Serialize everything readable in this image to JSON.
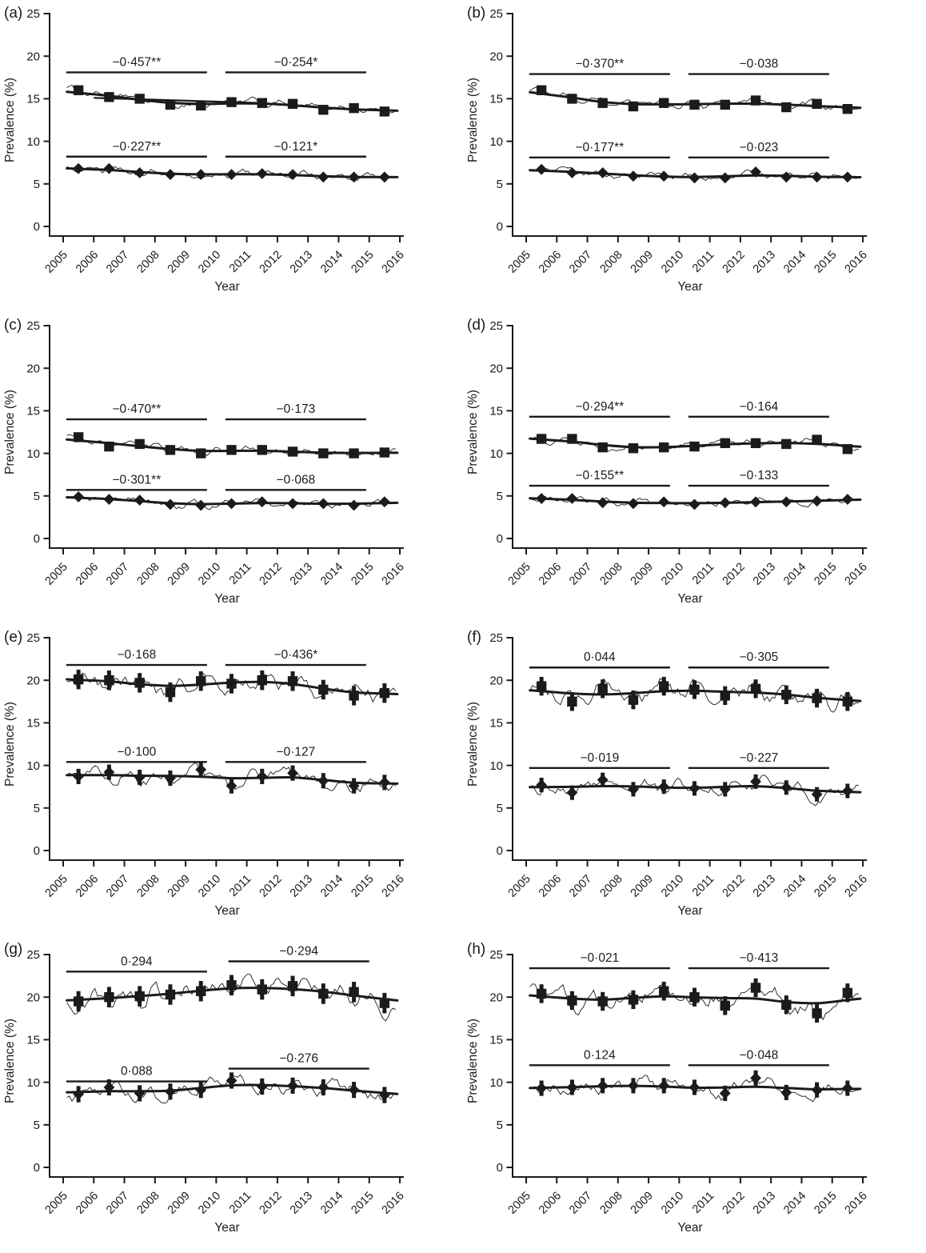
{
  "figure": {
    "ylabel": "Prevalence (%)",
    "xlabel": "Year",
    "yticks": [
      0,
      5,
      10,
      15,
      20,
      25
    ],
    "xticks": [
      2005,
      2006,
      2007,
      2008,
      2009,
      2010,
      2011,
      2012,
      2013,
      2014,
      2015,
      2016
    ],
    "ylim": [
      0,
      25
    ],
    "xlim": [
      2005,
      2016
    ],
    "grid": "off",
    "legend": "none",
    "ink_color": "#1b1b1b"
  },
  "chart_data": [
    {
      "type": "line",
      "panel": "(a)",
      "x": [
        2005.5,
        2006.5,
        2007.5,
        2008.5,
        2009.5,
        2010.5,
        2011.5,
        2012.5,
        2013.5,
        2014.5,
        2015.5
      ],
      "series": [
        {
          "name": "square-series",
          "marker": "square",
          "values": [
            16.0,
            15.2,
            15.0,
            14.3,
            14.2,
            14.6,
            14.5,
            14.4,
            13.7,
            13.9,
            13.5
          ],
          "err": 0.35
        },
        {
          "name": "diamond-series",
          "marker": "diamond",
          "values": [
            6.8,
            6.8,
            6.3,
            6.1,
            6.1,
            6.1,
            6.2,
            6.1,
            5.8,
            5.8,
            5.8
          ],
          "err": 0.3
        }
      ],
      "annotations": [
        {
          "label": "−0·457**",
          "x1": 2005.1,
          "x2": 2009.7,
          "y": 18.1
        },
        {
          "label": "−0·254*",
          "x1": 2010.3,
          "x2": 2014.9,
          "y": 18.1
        },
        {
          "label": "−0·227**",
          "x1": 2005.1,
          "x2": 2009.7,
          "y": 8.2
        },
        {
          "label": "−0·121*",
          "x1": 2010.3,
          "x2": 2014.9,
          "y": 8.2
        }
      ],
      "extra_line": {
        "x1": 2006.0,
        "y1": 15.1,
        "x2": 2011.5,
        "y2": 14.5
      }
    },
    {
      "type": "line",
      "panel": "(b)",
      "x": [
        2005.5,
        2006.5,
        2007.5,
        2008.5,
        2009.5,
        2010.5,
        2011.5,
        2012.5,
        2013.5,
        2014.5,
        2015.5
      ],
      "series": [
        {
          "name": "square-series",
          "marker": "square",
          "values": [
            16.0,
            15.0,
            14.5,
            14.1,
            14.5,
            14.3,
            14.3,
            14.8,
            14.0,
            14.4,
            13.8
          ],
          "err": 0.35
        },
        {
          "name": "diamond-series",
          "marker": "diamond",
          "values": [
            6.7,
            6.3,
            6.3,
            5.9,
            5.9,
            5.7,
            5.7,
            6.4,
            5.8,
            5.8,
            5.8
          ],
          "err": 0.3
        }
      ],
      "annotations": [
        {
          "label": "−0·370**",
          "x1": 2005.1,
          "x2": 2009.7,
          "y": 17.9
        },
        {
          "label": "−0·038",
          "x1": 2010.3,
          "x2": 2014.9,
          "y": 17.9
        },
        {
          "label": "−0·177**",
          "x1": 2005.1,
          "x2": 2009.7,
          "y": 8.1
        },
        {
          "label": "−0·023",
          "x1": 2010.3,
          "x2": 2014.9,
          "y": 8.1
        }
      ]
    },
    {
      "type": "line",
      "panel": "(c)",
      "x": [
        2005.5,
        2006.5,
        2007.5,
        2008.5,
        2009.5,
        2010.5,
        2011.5,
        2012.5,
        2013.5,
        2014.5,
        2015.5
      ],
      "series": [
        {
          "name": "square-series",
          "marker": "square",
          "values": [
            11.9,
            10.8,
            11.1,
            10.4,
            10.0,
            10.4,
            10.4,
            10.2,
            10.0,
            10.0,
            10.1
          ],
          "err": 0.3
        },
        {
          "name": "diamond-series",
          "marker": "diamond",
          "values": [
            4.9,
            4.6,
            4.5,
            4.0,
            3.9,
            4.1,
            4.3,
            4.1,
            4.1,
            3.9,
            4.3
          ],
          "err": 0.25
        }
      ],
      "annotations": [
        {
          "label": "−0·470**",
          "x1": 2005.1,
          "x2": 2009.7,
          "y": 14.0
        },
        {
          "label": "−0·173",
          "x1": 2010.3,
          "x2": 2014.9,
          "y": 14.0
        },
        {
          "label": "−0·301**",
          "x1": 2005.1,
          "x2": 2009.7,
          "y": 5.7
        },
        {
          "label": "−0·068",
          "x1": 2010.3,
          "x2": 2014.9,
          "y": 5.7
        }
      ]
    },
    {
      "type": "line",
      "panel": "(d)",
      "x": [
        2005.5,
        2006.5,
        2007.5,
        2008.5,
        2009.5,
        2010.5,
        2011.5,
        2012.5,
        2013.5,
        2014.5,
        2015.5
      ],
      "series": [
        {
          "name": "square-series",
          "marker": "square",
          "values": [
            11.7,
            11.7,
            10.7,
            10.6,
            10.7,
            10.8,
            11.2,
            11.2,
            11.1,
            11.6,
            10.5
          ],
          "err": 0.3
        },
        {
          "name": "diamond-series",
          "marker": "diamond",
          "values": [
            4.7,
            4.7,
            4.2,
            4.1,
            4.3,
            4.0,
            4.2,
            4.3,
            4.3,
            4.4,
            4.6
          ],
          "err": 0.25
        }
      ],
      "annotations": [
        {
          "label": "−0·294**",
          "x1": 2005.1,
          "x2": 2009.7,
          "y": 14.3
        },
        {
          "label": "−0·164",
          "x1": 2010.3,
          "x2": 2014.9,
          "y": 14.3
        },
        {
          "label": "−0·155**",
          "x1": 2005.1,
          "x2": 2009.7,
          "y": 6.2
        },
        {
          "label": "−0·133",
          "x1": 2010.3,
          "x2": 2014.9,
          "y": 6.2
        }
      ]
    },
    {
      "type": "line",
      "panel": "(e)",
      "x": [
        2005.5,
        2006.5,
        2007.5,
        2008.5,
        2009.5,
        2010.5,
        2011.5,
        2012.5,
        2013.5,
        2014.5,
        2015.5
      ],
      "series": [
        {
          "name": "square-series",
          "marker": "square",
          "values": [
            20.1,
            20.0,
            19.7,
            18.6,
            19.9,
            19.6,
            20.0,
            19.9,
            18.9,
            18.2,
            18.5
          ],
          "err": 1.15
        },
        {
          "name": "diamond-series",
          "marker": "diamond",
          "values": [
            8.7,
            9.2,
            8.6,
            8.5,
            9.5,
            7.6,
            8.7,
            9.1,
            8.2,
            7.6,
            8.0
          ],
          "err": 0.9
        }
      ],
      "annotations": [
        {
          "label": "−0·168",
          "x1": 2005.1,
          "x2": 2009.7,
          "y": 21.8
        },
        {
          "label": "−0·436*",
          "x1": 2010.3,
          "x2": 2014.9,
          "y": 21.8
        },
        {
          "label": "−0·100",
          "x1": 2005.1,
          "x2": 2009.7,
          "y": 10.4
        },
        {
          "label": "−0·127",
          "x1": 2010.3,
          "x2": 2014.9,
          "y": 10.4
        }
      ]
    },
    {
      "type": "line",
      "panel": "(f)",
      "x": [
        2005.5,
        2006.5,
        2007.5,
        2008.5,
        2009.5,
        2010.5,
        2011.5,
        2012.5,
        2013.5,
        2014.5,
        2015.5
      ],
      "series": [
        {
          "name": "square-series",
          "marker": "square",
          "values": [
            19.3,
            17.5,
            19.0,
            17.7,
            19.3,
            18.9,
            18.2,
            19.0,
            18.3,
            17.9,
            17.5
          ],
          "err": 1.1
        },
        {
          "name": "diamond-series",
          "marker": "diamond",
          "values": [
            7.7,
            6.8,
            8.3,
            7.2,
            7.5,
            7.3,
            7.2,
            8.1,
            7.4,
            6.6,
            7.0
          ],
          "err": 0.85
        }
      ],
      "annotations": [
        {
          "label": "0·044",
          "x1": 2005.1,
          "x2": 2009.7,
          "y": 21.5
        },
        {
          "label": "−0·305",
          "x1": 2010.3,
          "x2": 2014.9,
          "y": 21.5
        },
        {
          "label": "−0·019",
          "x1": 2005.1,
          "x2": 2009.7,
          "y": 9.7
        },
        {
          "label": "−0·227",
          "x1": 2010.3,
          "x2": 2014.9,
          "y": 9.7
        }
      ]
    },
    {
      "type": "line",
      "panel": "(g)",
      "x": [
        2005.5,
        2006.5,
        2007.5,
        2008.5,
        2009.5,
        2010.5,
        2011.5,
        2012.5,
        2013.5,
        2014.5,
        2015.5
      ],
      "series": [
        {
          "name": "square-series",
          "marker": "square",
          "values": [
            19.5,
            20.0,
            20.1,
            20.3,
            20.7,
            21.4,
            20.9,
            21.3,
            20.4,
            20.6,
            19.3
          ],
          "err": 1.2
        },
        {
          "name": "diamond-series",
          "marker": "diamond",
          "values": [
            8.6,
            9.4,
            8.7,
            8.9,
            9.1,
            10.2,
            9.5,
            9.6,
            9.4,
            9.1,
            8.5
          ],
          "err": 0.95
        }
      ],
      "annotations": [
        {
          "label": "0·294",
          "x1": 2005.1,
          "x2": 2009.7,
          "y": 23.0
        },
        {
          "label": "−0·294",
          "x1": 2010.4,
          "x2": 2015.0,
          "y": 24.2
        },
        {
          "label": "0·088",
          "x1": 2005.1,
          "x2": 2009.7,
          "y": 10.1
        },
        {
          "label": "−0·276",
          "x1": 2010.4,
          "x2": 2015.0,
          "y": 11.6
        }
      ]
    },
    {
      "type": "line",
      "panel": "(h)",
      "x": [
        2005.5,
        2006.5,
        2007.5,
        2008.5,
        2009.5,
        2010.5,
        2011.5,
        2012.5,
        2013.5,
        2014.5,
        2015.5
      ],
      "series": [
        {
          "name": "square-series",
          "marker": "square",
          "values": [
            20.4,
            19.6,
            19.5,
            19.7,
            20.7,
            20.0,
            19.0,
            21.1,
            19.1,
            18.1,
            20.5
          ],
          "err": 1.1
        },
        {
          "name": "diamond-series",
          "marker": "diamond",
          "values": [
            9.3,
            9.4,
            9.6,
            9.6,
            9.6,
            9.4,
            8.7,
            10.5,
            8.8,
            9.1,
            9.3
          ],
          "err": 0.9
        }
      ],
      "annotations": [
        {
          "label": "−0·021",
          "x1": 2005.1,
          "x2": 2009.7,
          "y": 23.4
        },
        {
          "label": "−0·413",
          "x1": 2010.3,
          "x2": 2014.9,
          "y": 23.4
        },
        {
          "label": "0·124",
          "x1": 2005.1,
          "x2": 2009.7,
          "y": 12.0
        },
        {
          "label": "−0·048",
          "x1": 2010.3,
          "x2": 2014.9,
          "y": 12.0
        }
      ]
    }
  ]
}
